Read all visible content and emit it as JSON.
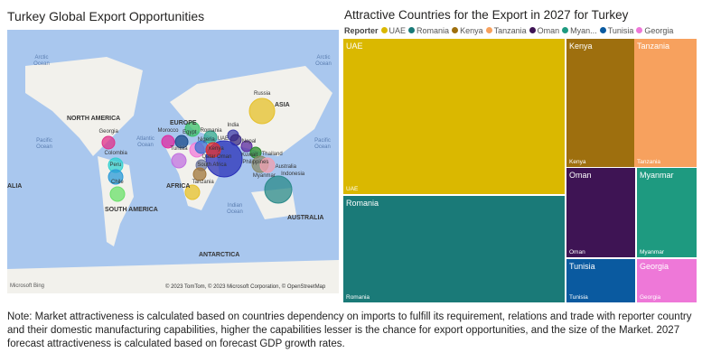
{
  "left": {
    "title": "Turkey Global Export Opportunities",
    "credits": "© 2023 TomTom, © 2023 Microsoft Corporation, © OpenStreetMap",
    "bing": "Microsoft Bing",
    "oceans": [
      "Arctic Ocean",
      "Arctic Ocean",
      "Pacific Ocean",
      "Atlantic Ocean",
      "Pacific Ocean",
      "Indian Ocean"
    ],
    "continents": [
      "NORTH AMERICA",
      "EUROPE",
      "AFRICA",
      "SOUTH AMERICA",
      "ASIA",
      "AUSTRALIA",
      "ANTARCTICA",
      "ALIA"
    ],
    "countries": [
      {
        "name": "Russia",
        "color": "#e6c02a",
        "r": 14
      },
      {
        "name": "Romania",
        "color": "#3cc06a",
        "r": 8
      },
      {
        "name": "India",
        "color": "#3a3aa8",
        "r": 6
      },
      {
        "name": "Georgia",
        "color": "#e0308a",
        "r": 7
      },
      {
        "name": "Morocco",
        "color": "#e02aa0",
        "r": 7
      },
      {
        "name": "Egypt",
        "color": "#1a4a8a",
        "r": 7
      },
      {
        "name": "UAE",
        "color": "#30a890",
        "r": 7
      },
      {
        "name": "Nepal",
        "color": "#3a2a80",
        "r": 6
      },
      {
        "name": "Nigeria",
        "color": "#f07ad8",
        "r": 8
      },
      {
        "name": "Kuwait",
        "color": "#5a2aa0",
        "r": 6
      },
      {
        "name": "Thailand",
        "color": "#2a8a2a",
        "r": 6
      },
      {
        "name": "Kenya",
        "color": "#3a70d0",
        "r": 7
      },
      {
        "name": "Philippines",
        "color": "#2a30b8",
        "r": 20
      },
      {
        "name": "Colombia",
        "color": "#30d0d0",
        "r": 8
      },
      {
        "name": "Peru",
        "color": "#2a9ad8",
        "r": 8
      },
      {
        "name": "Tunisia",
        "color": "#c070e0",
        "r": 8
      },
      {
        "name": "Qatar",
        "color": "#707aa0",
        "r": 6
      },
      {
        "name": "Myanmar",
        "color": "#8a8a6a",
        "r": 9
      },
      {
        "name": "Australia",
        "color": "#f0a0b0",
        "r": 8
      },
      {
        "name": "South Africa",
        "color": "#a0763a",
        "r": 7
      },
      {
        "name": "Tanzania",
        "color": "#e6c02a",
        "r": 8
      },
      {
        "name": "Chile",
        "color": "#6ae06a",
        "r": 8
      },
      {
        "name": "Oman",
        "color": "#e03030",
        "r": 8
      },
      {
        "name": "Indonesia",
        "color": "#2a8a8a",
        "r": 15
      }
    ]
  },
  "right": {
    "title": "Attractive Countries for the Export in 2027 for Turkey",
    "legend_title": "Reporter",
    "legend": [
      {
        "name": "UAE",
        "color": "#dab800"
      },
      {
        "name": "Romania",
        "color": "#1a7a78"
      },
      {
        "name": "Kenya",
        "color": "#9e6f0e"
      },
      {
        "name": "Tanzania",
        "color": "#f7a15e"
      },
      {
        "name": "Oman",
        "color": "#3e1454"
      },
      {
        "name": "Myan...",
        "color": "#1e9a80"
      },
      {
        "name": "Tunisia",
        "color": "#0a5aa0"
      },
      {
        "name": "Georgia",
        "color": "#ee78d8"
      }
    ],
    "cells": [
      {
        "name": "UAE",
        "color": "#dab800"
      },
      {
        "name": "Kenya",
        "color": "#9e6f0e"
      },
      {
        "name": "Tanzania",
        "color": "#f7a15e"
      },
      {
        "name": "Romania",
        "color": "#1a7a78"
      },
      {
        "name": "Oman",
        "color": "#3e1454"
      },
      {
        "name": "Myanmar",
        "color": "#1e9a80"
      },
      {
        "name": "Tunisia",
        "color": "#0a5aa0"
      },
      {
        "name": "Georgia",
        "color": "#ee78d8"
      }
    ]
  },
  "chart_data": {
    "type": "treemap",
    "title": "Attractive Countries for the Export in 2027 for Turkey",
    "categories": [
      "UAE",
      "Romania",
      "Kenya",
      "Tanzania",
      "Oman",
      "Myanmar",
      "Tunisia",
      "Georgia"
    ],
    "values": [
      42,
      28,
      11,
      10,
      7,
      5,
      4,
      3
    ]
  },
  "note": "Note: Market attractiveness is calculated based on countries dependency on imports to fulfill its requirement, relations and trade with reporter country and their domestic manufacturing capabilities, higher the capabilities lesser is the chance for export opportunities, and the size of the Market. 2027 forecast attractiveness is calculated based on forecast GDP growth rates."
}
